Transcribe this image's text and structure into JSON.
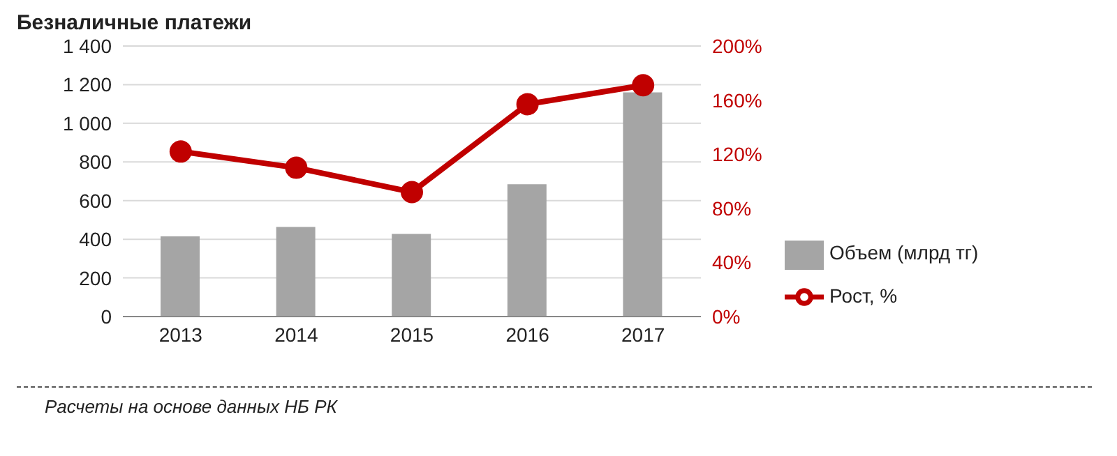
{
  "chart_data": {
    "type": "bar",
    "title": "Безналичные платежи",
    "categories": [
      "2013",
      "2014",
      "2015",
      "2016",
      "2017"
    ],
    "series": [
      {
        "name": "Объем (млрд тг)",
        "color": "#a5a5a5",
        "values": [
          415,
          464,
          428,
          685,
          1160
        ]
      },
      {
        "name": "Рост, %",
        "type": "line",
        "axis": "y2",
        "color": "#c00000",
        "values": [
          122,
          110,
          92,
          157,
          171
        ]
      }
    ],
    "ylim": [
      0,
      1400
    ],
    "yticks": [
      0,
      200,
      400,
      600,
      800,
      {
        "value": 1000,
        "label": "1 000"
      },
      {
        "value": 1200,
        "label": "1 200"
      },
      {
        "value": 1400,
        "label": "1 400"
      }
    ],
    "y2lim": [
      0,
      200
    ],
    "y2ticks": [
      {
        "value": 0,
        "label": "0%"
      },
      {
        "value": 40,
        "label": "40%"
      },
      {
        "value": 80,
        "label": "80%"
      },
      {
        "value": 120,
        "label": "120%"
      },
      {
        "value": 160,
        "label": "160%"
      },
      {
        "value": 200,
        "label": "200%"
      }
    ],
    "grid": "y",
    "legend": "right",
    "marker": "circle",
    "line_style": "solid",
    "annotations": [
      "Расчеты на основе данных НБ РК"
    ]
  }
}
